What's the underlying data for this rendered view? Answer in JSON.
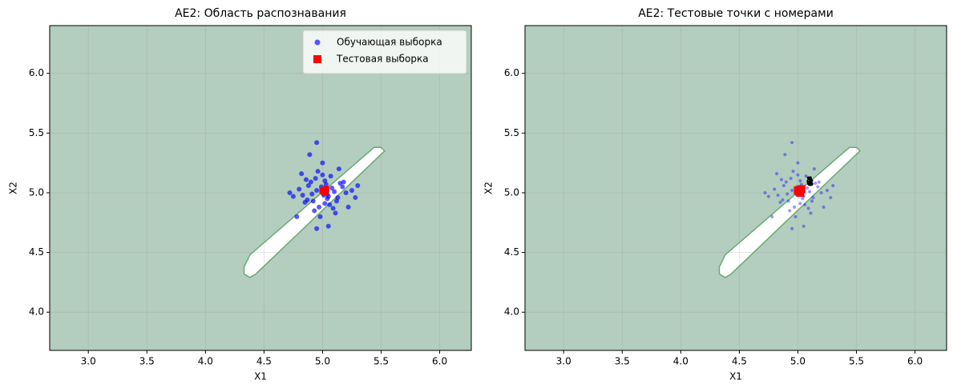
{
  "chart_data": [
    {
      "type": "scatter",
      "title": "AE2: Область распознавания",
      "x_label": "X1",
      "y_label": "X2",
      "xlim": [
        2.67,
        6.27
      ],
      "ylim": [
        3.68,
        6.4
      ],
      "xticks": [
        {
          "value": 3,
          "label": "3.0"
        },
        {
          "value": 3.5,
          "label": "3.5"
        },
        {
          "value": 4,
          "label": "4.0"
        },
        {
          "value": 4.5,
          "label": "4.5"
        },
        {
          "value": 5,
          "label": "5.0"
        },
        {
          "value": 5.5,
          "label": "5.5"
        },
        {
          "value": 6,
          "label": "6.0"
        }
      ],
      "yticks": [
        {
          "value": 4,
          "label": "4.0"
        },
        {
          "value": 4.5,
          "label": "4.5"
        },
        {
          "value": 5,
          "label": "5.0"
        },
        {
          "value": 5.5,
          "label": "5.5"
        },
        {
          "value": 6,
          "label": "6.0"
        }
      ],
      "grid": true,
      "legend": "upper right",
      "background_color": "#b3cdbe",
      "region_color": "#ffffff",
      "region_edge": "#6aaa74",
      "region": {
        "x": [
          4.33,
          4.38,
          5.44,
          5.5,
          5.53,
          4.43,
          4.38,
          4.33
        ],
        "y": [
          4.38,
          4.48,
          5.38,
          5.38,
          5.35,
          4.32,
          4.29,
          4.32
        ]
      },
      "series": [
        {
          "name": "Обучающая выборка",
          "color": "#0000ff",
          "marker": "circle",
          "size": 3,
          "opacity": 0.65,
          "x": [
            4.95,
            5.05,
            4.88,
            5.12,
            5.02,
            4.97,
            5.08,
            4.91,
            5.15,
            4.85,
            5.0,
            5.1,
            4.93,
            5.04,
            4.99,
            5.2,
            4.8,
            5.06,
            4.94,
            5.01,
            5.13,
            4.87,
            5.03,
            4.96,
            5.09,
            4.9,
            5.17,
            4.83,
            5.07,
            4.98,
            5.25,
            4.75,
            5.11,
            4.92,
            5.3,
            4.72,
            5.0,
            4.95,
            5.05,
            5.22,
            4.78,
            5.14,
            4.86,
            4.95,
            5.28,
            4.82,
            5.02,
            5.18,
            4.89,
            5.04
          ],
          "values": [
            5.02,
            4.97,
            5.06,
            4.93,
            5.1,
            4.88,
            5.04,
            4.99,
            5.08,
            4.92,
            5.15,
            5.01,
            4.85,
            4.95,
            5.05,
            5.0,
            5.03,
            4.9,
            5.12,
            4.98,
            4.96,
            4.94,
            5.07,
            5.18,
            4.87,
            5.09,
            5.05,
            4.98,
            5.14,
            4.8,
            5.02,
            4.97,
            4.83,
            4.93,
            5.06,
            5.0,
            5.25,
            5.42,
            4.72,
            4.88,
            4.8,
            5.2,
            5.11,
            4.7,
            4.96,
            5.16,
            4.91,
            5.09,
            5.32,
            4.99
          ]
        },
        {
          "name": "Тестовая выборка",
          "color": "#ff0000",
          "marker": "square",
          "size": 8,
          "opacity": 1,
          "x": [
            5.0,
            5.02,
            5.03,
            5.01
          ],
          "values": [
            5.02,
            5.0,
            5.03,
            5.01
          ]
        }
      ]
    },
    {
      "type": "scatter",
      "title": "AE2: Тестовые точки с номерами",
      "x_label": "X1",
      "y_label": "X2",
      "xlim": [
        2.67,
        6.27
      ],
      "ylim": [
        3.68,
        6.4
      ],
      "xticks": [
        {
          "value": 3,
          "label": "3.0"
        },
        {
          "value": 3.5,
          "label": "3.5"
        },
        {
          "value": 4,
          "label": "4.0"
        },
        {
          "value": 4.5,
          "label": "4.5"
        },
        {
          "value": 5,
          "label": "5.0"
        },
        {
          "value": 5.5,
          "label": "5.5"
        },
        {
          "value": 6,
          "label": "6.0"
        }
      ],
      "yticks": [
        {
          "value": 4,
          "label": "4.0"
        },
        {
          "value": 4.5,
          "label": "4.5"
        },
        {
          "value": 5,
          "label": "5.0"
        },
        {
          "value": 5.5,
          "label": "5.5"
        },
        {
          "value": 6,
          "label": "6.0"
        }
      ],
      "grid": true,
      "background_color": "#b3cdbe",
      "region_color": "#ffffff",
      "region_edge": "#6aaa74",
      "region": {
        "x": [
          4.33,
          4.38,
          5.44,
          5.5,
          5.53,
          4.43,
          4.38,
          4.33
        ],
        "y": [
          4.38,
          4.48,
          5.38,
          5.38,
          5.35,
          4.32,
          4.29,
          4.32
        ]
      },
      "series": [
        {
          "color": "#0000ff",
          "marker": "circle",
          "size": 2,
          "opacity": 0.4,
          "x": [
            4.95,
            5.05,
            4.88,
            5.12,
            5.02,
            4.97,
            5.08,
            4.91,
            5.15,
            4.85,
            5.0,
            5.1,
            4.93,
            5.04,
            4.99,
            5.2,
            4.8,
            5.06,
            4.94,
            5.01,
            5.13,
            4.87,
            5.03,
            4.96,
            5.09,
            4.9,
            5.17,
            4.83,
            5.07,
            4.98,
            5.25,
            4.75,
            5.11,
            4.92,
            5.3,
            4.72,
            5.0,
            4.95,
            5.05,
            5.22,
            4.78,
            5.14,
            4.86,
            4.95,
            5.28,
            4.82,
            5.02,
            5.18,
            4.89,
            5.04
          ],
          "values": [
            5.02,
            4.97,
            5.06,
            4.93,
            5.1,
            4.88,
            5.04,
            4.99,
            5.08,
            4.92,
            5.15,
            5.01,
            4.85,
            4.95,
            5.05,
            5.0,
            5.03,
            4.9,
            5.12,
            4.98,
            4.96,
            4.94,
            5.07,
            5.18,
            4.87,
            5.09,
            5.05,
            4.98,
            5.14,
            4.8,
            5.02,
            4.97,
            4.83,
            4.93,
            5.06,
            5.0,
            5.25,
            5.42,
            4.72,
            4.88,
            4.8,
            5.2,
            5.11,
            4.7,
            4.96,
            5.16,
            4.91,
            5.09,
            5.32,
            4.99
          ]
        },
        {
          "color": "#ff0000",
          "marker": "square",
          "size": 10,
          "opacity": 1,
          "x": [
            5.0,
            5.02,
            5.03,
            5.01
          ],
          "values": [
            5.02,
            5.0,
            5.03,
            5.01
          ]
        }
      ],
      "annotations": [
        {
          "text": "1",
          "x": 5.1,
          "y": 5.09
        },
        {
          "text": "2",
          "x": 5.1,
          "y": 5.1
        },
        {
          "text": "3",
          "x": 5.11,
          "y": 5.08
        },
        {
          "text": "4",
          "x": 5.1,
          "y": 5.1
        }
      ]
    }
  ]
}
